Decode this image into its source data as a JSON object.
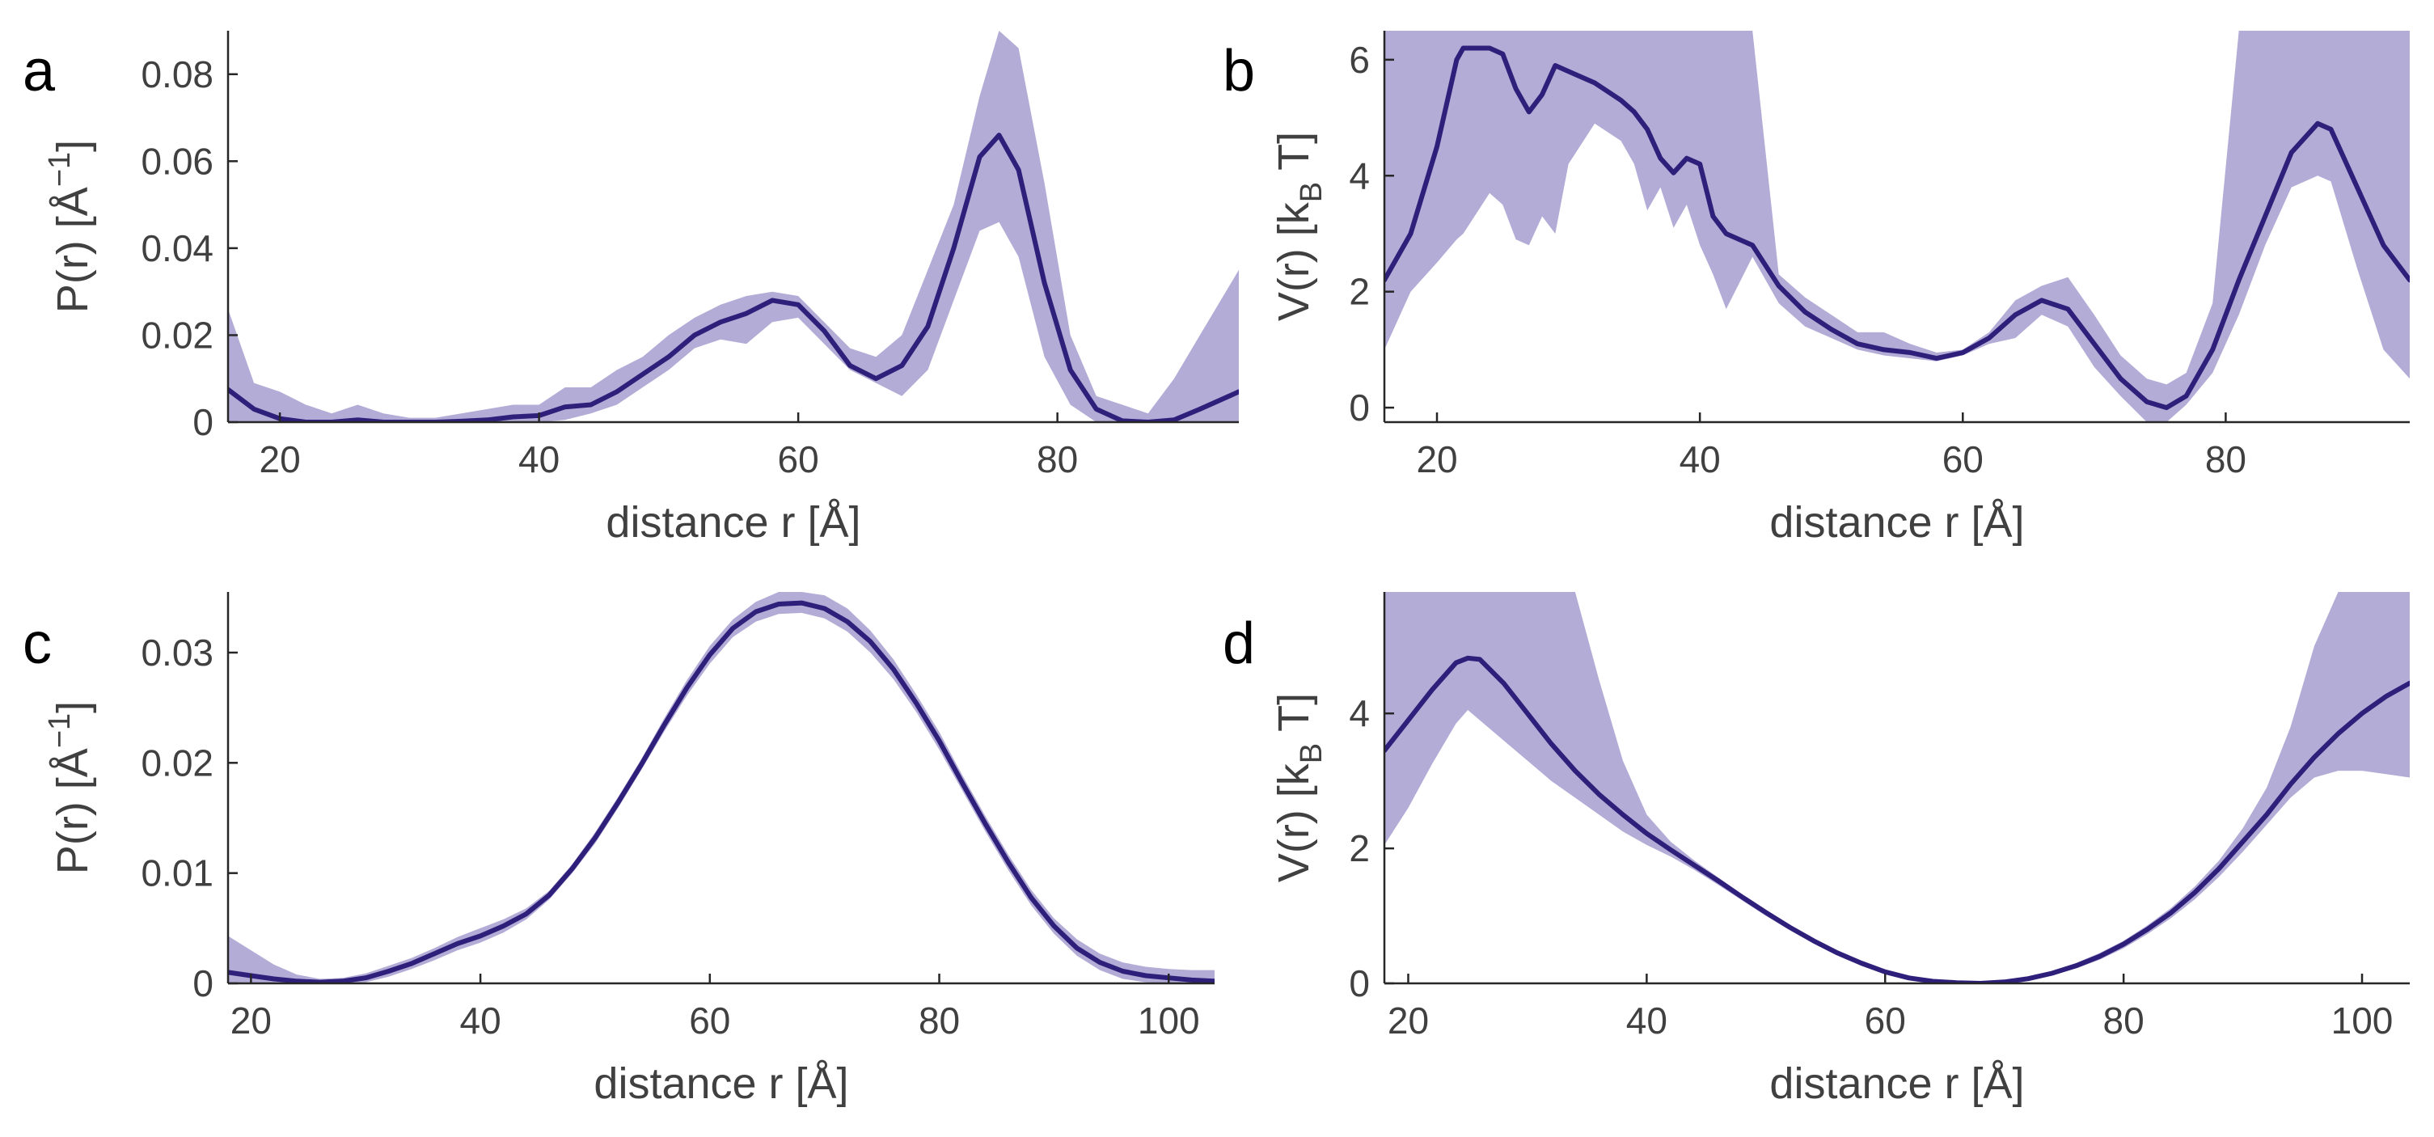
{
  "colors": {
    "band": "#b3acd6",
    "line": "#2e1f7a",
    "axis": "#262626",
    "text": "#404040"
  },
  "chart_data": [
    {
      "panel": "a",
      "type": "area",
      "xlabel": "distance r [Å]",
      "ylabel_main": "P(r) [Å",
      "ylabel_sup": "−1",
      "ylabel_tail": "]",
      "xlim": [
        16,
        94
      ],
      "ylim": [
        0,
        0.09
      ],
      "xticks": [
        20,
        40,
        60,
        80
      ],
      "xtick_labels": [
        "20",
        "40",
        "60",
        "80"
      ],
      "yticks": [
        0,
        0.02,
        0.04,
        0.06,
        0.08
      ],
      "ytick_labels": [
        "0",
        "0.02",
        "0.04",
        "0.06",
        "0.08"
      ],
      "x": [
        16,
        18,
        20,
        22,
        24,
        26,
        28,
        30,
        32,
        34,
        36,
        38,
        40,
        42,
        44,
        46,
        48,
        50,
        52,
        54,
        56,
        58,
        60,
        62,
        64,
        66,
        68,
        70,
        72,
        74,
        75.5,
        77,
        79,
        81,
        83,
        85,
        87,
        89,
        91,
        94
      ],
      "mean": [
        0.0075,
        0.003,
        0.0008,
        0.0,
        0.0,
        0.0005,
        0.0,
        0.0,
        0.0,
        0.0002,
        0.0005,
        0.0012,
        0.0015,
        0.0035,
        0.004,
        0.007,
        0.011,
        0.015,
        0.02,
        0.023,
        0.025,
        0.028,
        0.027,
        0.021,
        0.013,
        0.01,
        0.013,
        0.022,
        0.04,
        0.061,
        0.066,
        0.058,
        0.032,
        0.012,
        0.003,
        0.0003,
        0.0,
        0.0005,
        0.003,
        0.007
      ],
      "upper": [
        0.026,
        0.009,
        0.007,
        0.004,
        0.002,
        0.004,
        0.002,
        0.001,
        0.001,
        0.002,
        0.003,
        0.004,
        0.004,
        0.008,
        0.008,
        0.012,
        0.015,
        0.02,
        0.024,
        0.027,
        0.029,
        0.03,
        0.029,
        0.023,
        0.017,
        0.015,
        0.02,
        0.035,
        0.05,
        0.075,
        0.09,
        0.086,
        0.055,
        0.02,
        0.006,
        0.004,
        0.002,
        0.01,
        0.02,
        0.035
      ],
      "lower": [
        0.0,
        0.0,
        0.0,
        0.0,
        0.0,
        0.0,
        0.0,
        0.0,
        0.0,
        0.0,
        0.0,
        0.0,
        0.0,
        0.0005,
        0.002,
        0.004,
        0.008,
        0.012,
        0.017,
        0.019,
        0.018,
        0.023,
        0.024,
        0.018,
        0.012,
        0.009,
        0.006,
        0.012,
        0.028,
        0.044,
        0.046,
        0.038,
        0.015,
        0.004,
        0.0,
        0.0,
        0.0,
        0.0,
        0.0,
        0.0
      ]
    },
    {
      "panel": "b",
      "type": "area",
      "xlabel": "distance r [Å]",
      "ylabel_main": "V(r) [k",
      "ylabel_sub": "B",
      "ylabel_tail": " T]",
      "xlim": [
        16,
        94
      ],
      "ylim": [
        -0.25,
        6.5
      ],
      "xticks": [
        20,
        40,
        60,
        80
      ],
      "xtick_labels": [
        "20",
        "40",
        "60",
        "80"
      ],
      "yticks": [
        0,
        2,
        4,
        6
      ],
      "ytick_labels": [
        "0",
        "2",
        "4",
        "6"
      ],
      "x": [
        16,
        18,
        20,
        21.5,
        22,
        24,
        25,
        26,
        27,
        28,
        29,
        30,
        32,
        34,
        35,
        36,
        37,
        38,
        39,
        40,
        41,
        42,
        44,
        46,
        48,
        50,
        52,
        54,
        56,
        58,
        60,
        62,
        64,
        66,
        68,
        70,
        72,
        74,
        75.5,
        77,
        79,
        81,
        83,
        85,
        87,
        88,
        90,
        92,
        94
      ],
      "mean": [
        2.2,
        3.0,
        4.5,
        6.0,
        6.2,
        6.2,
        6.1,
        5.5,
        5.1,
        5.4,
        5.9,
        5.8,
        5.6,
        5.3,
        5.1,
        4.8,
        4.3,
        4.05,
        4.3,
        4.2,
        3.3,
        3.0,
        2.8,
        2.1,
        1.65,
        1.35,
        1.1,
        1.0,
        0.95,
        0.85,
        0.95,
        1.2,
        1.6,
        1.85,
        1.7,
        1.1,
        0.5,
        0.1,
        0.0,
        0.2,
        1.0,
        2.2,
        3.3,
        4.4,
        4.9,
        4.8,
        3.8,
        2.8,
        2.2
      ],
      "upper": [
        6.5,
        6.5,
        6.5,
        6.5,
        6.5,
        6.5,
        6.5,
        6.5,
        6.5,
        6.5,
        6.5,
        6.5,
        6.5,
        6.5,
        6.5,
        6.5,
        6.5,
        6.5,
        6.5,
        6.5,
        6.5,
        6.5,
        6.5,
        2.3,
        1.9,
        1.6,
        1.3,
        1.3,
        1.1,
        0.95,
        1.0,
        1.3,
        1.85,
        2.1,
        2.25,
        1.6,
        0.9,
        0.5,
        0.4,
        0.6,
        1.8,
        6.5,
        6.5,
        6.5,
        6.5,
        6.5,
        6.5,
        6.5,
        6.5
      ],
      "lower": [
        1.0,
        2.0,
        2.5,
        2.9,
        3.0,
        3.7,
        3.5,
        2.9,
        2.8,
        3.3,
        3.0,
        4.2,
        4.9,
        4.6,
        4.2,
        3.4,
        3.8,
        3.1,
        3.5,
        2.8,
        2.3,
        1.7,
        2.6,
        1.8,
        1.4,
        1.2,
        1.0,
        0.9,
        0.85,
        0.8,
        0.9,
        1.1,
        1.2,
        1.6,
        1.4,
        0.7,
        0.2,
        -0.25,
        -0.25,
        0.05,
        0.6,
        1.6,
        2.8,
        3.8,
        4.0,
        3.9,
        2.4,
        1.0,
        0.5
      ]
    },
    {
      "panel": "c",
      "type": "area",
      "xlabel": "distance r [Å]",
      "ylabel_main": "P(r) [Å",
      "ylabel_sup": "−1",
      "ylabel_tail": "]",
      "xlim": [
        18,
        104
      ],
      "ylim": [
        0,
        0.0355
      ],
      "xticks": [
        20,
        40,
        60,
        80,
        100
      ],
      "xtick_labels": [
        "20",
        "40",
        "60",
        "80",
        "100"
      ],
      "yticks": [
        0,
        0.01,
        0.02,
        0.03
      ],
      "ytick_labels": [
        "0",
        "0.01",
        "0.02",
        "0.03"
      ],
      "x": [
        18,
        20,
        22,
        24,
        26,
        28,
        30,
        32,
        34,
        36,
        38,
        40,
        42,
        44,
        46,
        48,
        50,
        52,
        54,
        56,
        58,
        60,
        62,
        64,
        66,
        68,
        70,
        72,
        74,
        76,
        78,
        80,
        82,
        84,
        86,
        88,
        90,
        92,
        94,
        96,
        98,
        100,
        102,
        104
      ],
      "mean": [
        0.001,
        0.0007,
        0.0004,
        0.0002,
        0.0001,
        0.0002,
        0.0005,
        0.0011,
        0.0018,
        0.0027,
        0.0036,
        0.0043,
        0.0052,
        0.0063,
        0.008,
        0.0104,
        0.0132,
        0.0164,
        0.0198,
        0.0234,
        0.0268,
        0.0298,
        0.0322,
        0.0337,
        0.0344,
        0.0345,
        0.034,
        0.0328,
        0.031,
        0.0285,
        0.0254,
        0.022,
        0.0182,
        0.0145,
        0.011,
        0.0078,
        0.0052,
        0.0032,
        0.0019,
        0.0011,
        0.0007,
        0.0005,
        0.0003,
        0.0002
      ],
      "upper": [
        0.0043,
        0.003,
        0.0017,
        0.0008,
        0.0004,
        0.0005,
        0.0009,
        0.0016,
        0.0023,
        0.0032,
        0.0042,
        0.005,
        0.0058,
        0.0068,
        0.0084,
        0.0108,
        0.0137,
        0.0169,
        0.0203,
        0.024,
        0.0275,
        0.0306,
        0.033,
        0.0346,
        0.0355,
        0.0355,
        0.0352,
        0.034,
        0.032,
        0.0294,
        0.0262,
        0.0228,
        0.0189,
        0.0152,
        0.0117,
        0.0085,
        0.0059,
        0.004,
        0.0027,
        0.0019,
        0.0015,
        0.0013,
        0.0012,
        0.0012
      ],
      "lower": [
        0.0,
        0.0,
        0.0,
        0.0,
        0.0,
        0.0,
        0.0001,
        0.0006,
        0.0013,
        0.0021,
        0.003,
        0.0037,
        0.0046,
        0.0058,
        0.0076,
        0.01,
        0.0127,
        0.0159,
        0.0193,
        0.0228,
        0.0261,
        0.029,
        0.0314,
        0.0328,
        0.0335,
        0.0336,
        0.0331,
        0.0319,
        0.03,
        0.0276,
        0.0246,
        0.0212,
        0.0175,
        0.0138,
        0.0103,
        0.0071,
        0.0045,
        0.0025,
        0.0012,
        0.0004,
        0.0001,
        0.0,
        0.0,
        0.0
      ]
    },
    {
      "panel": "d",
      "type": "area",
      "xlabel": "distance r [Å]",
      "ylabel_main": "V(r) [k",
      "ylabel_sub": "B",
      "ylabel_tail": " T]",
      "xlim": [
        18,
        104
      ],
      "ylim": [
        0,
        5.8
      ],
      "xticks": [
        20,
        40,
        60,
        80,
        100
      ],
      "xtick_labels": [
        "20",
        "40",
        "60",
        "80",
        "100"
      ],
      "yticks": [
        0,
        2,
        4
      ],
      "ytick_labels": [
        "0",
        "2",
        "4"
      ],
      "x": [
        18,
        20,
        22,
        24,
        25,
        26,
        28,
        30,
        32,
        34,
        36,
        38,
        40,
        42,
        44,
        46,
        48,
        50,
        52,
        54,
        56,
        58,
        60,
        62,
        64,
        66,
        68,
        70,
        72,
        74,
        76,
        78,
        80,
        82,
        84,
        86,
        88,
        90,
        92,
        94,
        96,
        98,
        100,
        102,
        104
      ],
      "mean": [
        3.45,
        3.9,
        4.35,
        4.75,
        4.82,
        4.8,
        4.45,
        4.0,
        3.55,
        3.15,
        2.8,
        2.5,
        2.22,
        1.98,
        1.75,
        1.52,
        1.28,
        1.05,
        0.83,
        0.63,
        0.45,
        0.3,
        0.17,
        0.08,
        0.03,
        0.01,
        0.0,
        0.02,
        0.07,
        0.15,
        0.26,
        0.4,
        0.58,
        0.8,
        1.05,
        1.35,
        1.7,
        2.1,
        2.5,
        2.95,
        3.35,
        3.7,
        4.0,
        4.25,
        4.45
      ],
      "upper": [
        5.8,
        5.8,
        5.8,
        5.8,
        5.8,
        5.8,
        5.8,
        5.8,
        5.8,
        5.8,
        4.5,
        3.3,
        2.5,
        2.1,
        1.82,
        1.57,
        1.32,
        1.09,
        0.86,
        0.66,
        0.47,
        0.32,
        0.19,
        0.1,
        0.04,
        0.02,
        0.01,
        0.03,
        0.09,
        0.18,
        0.3,
        0.45,
        0.63,
        0.86,
        1.12,
        1.44,
        1.82,
        2.3,
        2.9,
        3.8,
        5.0,
        5.8,
        5.8,
        5.8,
        5.8
      ],
      "lower": [
        2.05,
        2.6,
        3.25,
        3.85,
        4.05,
        3.9,
        3.6,
        3.3,
        3.0,
        2.75,
        2.5,
        2.25,
        2.05,
        1.88,
        1.68,
        1.46,
        1.23,
        1.0,
        0.79,
        0.59,
        0.42,
        0.27,
        0.15,
        0.06,
        0.02,
        0.0,
        0.0,
        0.01,
        0.05,
        0.12,
        0.22,
        0.35,
        0.52,
        0.73,
        0.97,
        1.25,
        1.58,
        1.95,
        2.35,
        2.75,
        3.05,
        3.15,
        3.15,
        3.1,
        3.05
      ]
    }
  ]
}
